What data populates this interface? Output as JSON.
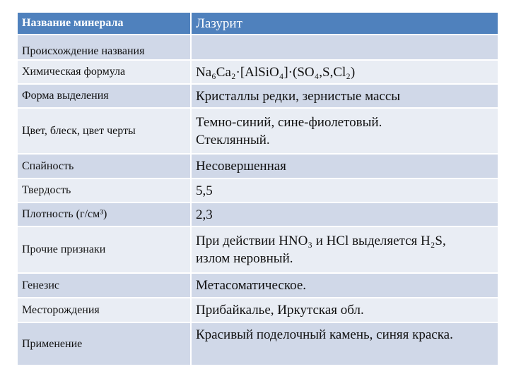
{
  "header": {
    "label": "Название минерала",
    "value": "Лазурит"
  },
  "rows": [
    {
      "label": "Происхождение названия",
      "value": ""
    },
    {
      "label": "Химическая формула",
      "value": "Na₆Ca₂·[AlSiO₄]·(SO₄,S,Cl₂)"
    },
    {
      "label": "Форма выделения",
      "value": "Кристаллы редки, зернистые массы"
    },
    {
      "label": "Цвет, блеск, цвет черты",
      "value": "Темно-синий, сине-фиолетовый.\nСтеклянный."
    },
    {
      "label": "Спайность",
      "value": "Несовершенная"
    },
    {
      "label": "Твердость",
      "value": "5,5"
    },
    {
      "label": "Плотность (г/см³)",
      "value": "2,3"
    },
    {
      "label": "Прочие признаки",
      "value": "При действии HNO₃ и HCl выделяется H₂S,\nизлом неровный."
    },
    {
      "label": "Генезис",
      "value": "Метасоматическое."
    },
    {
      "label": "Месторождения",
      "value": "Прибайкалье, Иркутская обл."
    },
    {
      "label": "Применение",
      "value": "Красивый поделочный камень, синяя краска."
    }
  ],
  "colors": {
    "header": "#4f81bd",
    "row_dark": "#d0d8e8",
    "row_light": "#e9edf4"
  }
}
